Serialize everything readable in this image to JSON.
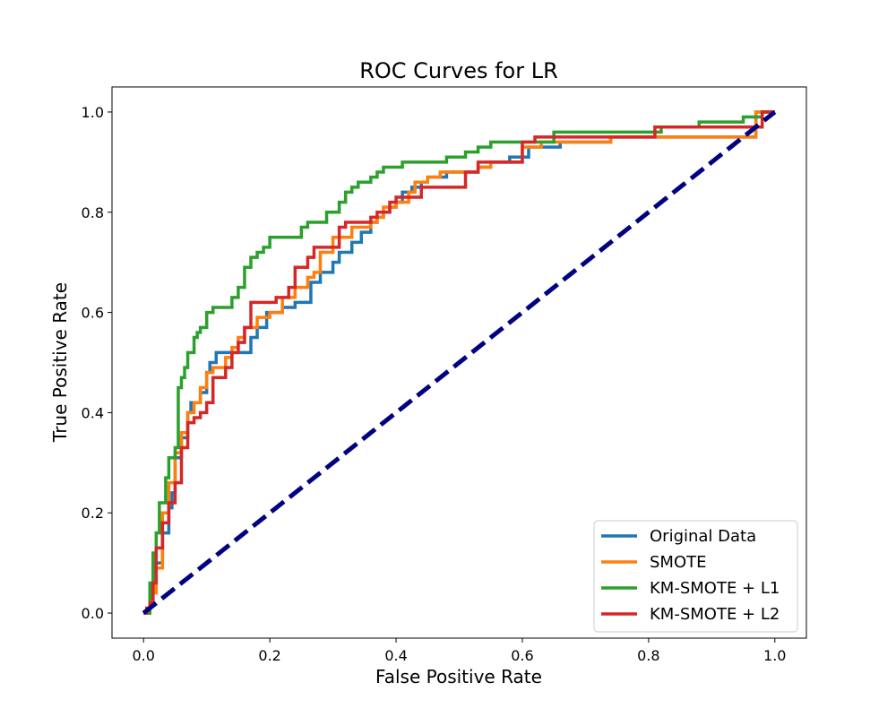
{
  "chart_data": {
    "type": "line",
    "title": "ROC Curves for LR",
    "xlabel": "False Positive Rate",
    "ylabel": "True Positive Rate",
    "xlim": [
      -0.05,
      1.05
    ],
    "ylim": [
      -0.05,
      1.05
    ],
    "xticks": [
      "0.0",
      "0.2",
      "0.4",
      "0.6",
      "0.8",
      "1.0"
    ],
    "yticks": [
      "0.0",
      "0.2",
      "0.4",
      "0.6",
      "0.8",
      "1.0"
    ],
    "grid": false,
    "legend_position": "lower-right",
    "series": [
      {
        "name": "Original Data",
        "color": "#1f77b4",
        "x": [
          0.0,
          0.01,
          0.01,
          0.015,
          0.015,
          0.02,
          0.02,
          0.03,
          0.03,
          0.04,
          0.04,
          0.045,
          0.045,
          0.05,
          0.05,
          0.06,
          0.06,
          0.07,
          0.07,
          0.075,
          0.075,
          0.09,
          0.09,
          0.1,
          0.1,
          0.105,
          0.105,
          0.115,
          0.115,
          0.13,
          0.13,
          0.17,
          0.17,
          0.18,
          0.18,
          0.195,
          0.195,
          0.22,
          0.22,
          0.24,
          0.24,
          0.265,
          0.265,
          0.28,
          0.28,
          0.3,
          0.3,
          0.31,
          0.31,
          0.33,
          0.33,
          0.345,
          0.345,
          0.36,
          0.36,
          0.37,
          0.37,
          0.38,
          0.38,
          0.39,
          0.39,
          0.4,
          0.4,
          0.41,
          0.41,
          0.425,
          0.425,
          0.44,
          0.44,
          0.45,
          0.45,
          0.48,
          0.48,
          0.53,
          0.53,
          0.55,
          0.55,
          0.58,
          0.58,
          0.61,
          0.61,
          0.66,
          0.66,
          0.74,
          0.74,
          0.97,
          0.97,
          1.0
        ],
        "y": [
          0.0,
          0.0,
          0.03,
          0.03,
          0.06,
          0.06,
          0.1,
          0.1,
          0.16,
          0.16,
          0.21,
          0.21,
          0.24,
          0.24,
          0.31,
          0.31,
          0.35,
          0.35,
          0.4,
          0.4,
          0.42,
          0.42,
          0.44,
          0.44,
          0.48,
          0.48,
          0.5,
          0.5,
          0.52,
          0.52,
          0.52,
          0.52,
          0.55,
          0.55,
          0.57,
          0.57,
          0.6,
          0.6,
          0.61,
          0.61,
          0.62,
          0.62,
          0.66,
          0.66,
          0.68,
          0.68,
          0.7,
          0.7,
          0.72,
          0.72,
          0.74,
          0.74,
          0.76,
          0.76,
          0.78,
          0.78,
          0.79,
          0.79,
          0.8,
          0.8,
          0.81,
          0.81,
          0.82,
          0.82,
          0.84,
          0.84,
          0.85,
          0.85,
          0.86,
          0.86,
          0.87,
          0.87,
          0.88,
          0.88,
          0.89,
          0.89,
          0.9,
          0.9,
          0.91,
          0.91,
          0.93,
          0.93,
          0.94,
          0.94,
          0.95,
          0.95,
          1.0,
          1.0
        ]
      },
      {
        "name": "SMOTE",
        "color": "#ff7f0e",
        "x": [
          0.0,
          0.01,
          0.01,
          0.02,
          0.02,
          0.03,
          0.03,
          0.04,
          0.04,
          0.05,
          0.05,
          0.06,
          0.06,
          0.07,
          0.07,
          0.08,
          0.08,
          0.09,
          0.09,
          0.1,
          0.1,
          0.11,
          0.11,
          0.13,
          0.13,
          0.14,
          0.14,
          0.15,
          0.15,
          0.16,
          0.16,
          0.18,
          0.18,
          0.2,
          0.2,
          0.22,
          0.22,
          0.24,
          0.24,
          0.26,
          0.26,
          0.27,
          0.27,
          0.28,
          0.28,
          0.3,
          0.3,
          0.33,
          0.33,
          0.36,
          0.36,
          0.37,
          0.37,
          0.38,
          0.38,
          0.4,
          0.4,
          0.42,
          0.42,
          0.43,
          0.43,
          0.45,
          0.45,
          0.47,
          0.47,
          0.53,
          0.53,
          0.55,
          0.55,
          0.6,
          0.6,
          0.63,
          0.63,
          0.74,
          0.74,
          0.97,
          0.97,
          1.0
        ],
        "y": [
          0.0,
          0.0,
          0.04,
          0.04,
          0.09,
          0.09,
          0.2,
          0.2,
          0.26,
          0.26,
          0.32,
          0.32,
          0.36,
          0.36,
          0.4,
          0.4,
          0.42,
          0.42,
          0.45,
          0.45,
          0.48,
          0.48,
          0.49,
          0.49,
          0.51,
          0.51,
          0.53,
          0.53,
          0.55,
          0.55,
          0.57,
          0.57,
          0.59,
          0.59,
          0.6,
          0.6,
          0.63,
          0.63,
          0.65,
          0.65,
          0.67,
          0.67,
          0.68,
          0.68,
          0.72,
          0.72,
          0.75,
          0.75,
          0.77,
          0.77,
          0.78,
          0.78,
          0.79,
          0.79,
          0.81,
          0.81,
          0.82,
          0.82,
          0.84,
          0.84,
          0.86,
          0.86,
          0.87,
          0.87,
          0.88,
          0.88,
          0.89,
          0.89,
          0.9,
          0.9,
          0.93,
          0.93,
          0.94,
          0.94,
          0.95,
          0.95,
          1.0,
          1.0
        ]
      },
      {
        "name": "KM-SMOTE + L1",
        "color": "#2ca02c",
        "x": [
          0.0,
          0.01,
          0.01,
          0.015,
          0.015,
          0.02,
          0.02,
          0.025,
          0.025,
          0.035,
          0.035,
          0.04,
          0.04,
          0.05,
          0.05,
          0.055,
          0.055,
          0.06,
          0.06,
          0.065,
          0.065,
          0.07,
          0.07,
          0.08,
          0.08,
          0.085,
          0.085,
          0.09,
          0.09,
          0.1,
          0.1,
          0.11,
          0.11,
          0.12,
          0.12,
          0.14,
          0.14,
          0.15,
          0.15,
          0.16,
          0.16,
          0.17,
          0.17,
          0.18,
          0.18,
          0.19,
          0.19,
          0.2,
          0.2,
          0.21,
          0.21,
          0.25,
          0.25,
          0.26,
          0.26,
          0.29,
          0.29,
          0.31,
          0.31,
          0.32,
          0.32,
          0.33,
          0.33,
          0.34,
          0.34,
          0.36,
          0.36,
          0.37,
          0.37,
          0.38,
          0.38,
          0.39,
          0.39,
          0.4,
          0.4,
          0.41,
          0.41,
          0.48,
          0.48,
          0.51,
          0.51,
          0.53,
          0.53,
          0.55,
          0.55,
          0.65,
          0.65,
          0.69,
          0.69,
          0.82,
          0.82,
          0.88,
          0.88,
          0.95,
          0.95,
          0.98,
          0.98,
          1.0
        ],
        "y": [
          0.0,
          0.0,
          0.06,
          0.06,
          0.12,
          0.12,
          0.16,
          0.16,
          0.22,
          0.22,
          0.27,
          0.27,
          0.31,
          0.31,
          0.33,
          0.33,
          0.45,
          0.45,
          0.47,
          0.47,
          0.49,
          0.49,
          0.52,
          0.52,
          0.55,
          0.55,
          0.56,
          0.56,
          0.57,
          0.57,
          0.6,
          0.6,
          0.61,
          0.61,
          0.61,
          0.61,
          0.63,
          0.63,
          0.65,
          0.65,
          0.69,
          0.69,
          0.71,
          0.71,
          0.72,
          0.72,
          0.73,
          0.73,
          0.75,
          0.75,
          0.75,
          0.75,
          0.77,
          0.77,
          0.78,
          0.78,
          0.8,
          0.8,
          0.82,
          0.82,
          0.84,
          0.84,
          0.85,
          0.85,
          0.86,
          0.86,
          0.87,
          0.87,
          0.88,
          0.88,
          0.89,
          0.89,
          0.89,
          0.89,
          0.89,
          0.89,
          0.9,
          0.9,
          0.91,
          0.91,
          0.92,
          0.92,
          0.93,
          0.93,
          0.94,
          0.94,
          0.96,
          0.96,
          0.96,
          0.96,
          0.97,
          0.97,
          0.98,
          0.98,
          0.99,
          0.99,
          1.0,
          1.0
        ]
      },
      {
        "name": "KM-SMOTE + L2",
        "color": "#d62728",
        "x": [
          0.0,
          0.005,
          0.005,
          0.01,
          0.01,
          0.015,
          0.015,
          0.02,
          0.02,
          0.03,
          0.03,
          0.04,
          0.04,
          0.05,
          0.05,
          0.06,
          0.06,
          0.07,
          0.07,
          0.08,
          0.08,
          0.09,
          0.09,
          0.1,
          0.1,
          0.11,
          0.11,
          0.13,
          0.13,
          0.14,
          0.14,
          0.15,
          0.15,
          0.16,
          0.16,
          0.17,
          0.17,
          0.21,
          0.21,
          0.23,
          0.23,
          0.24,
          0.24,
          0.26,
          0.26,
          0.27,
          0.27,
          0.31,
          0.31,
          0.32,
          0.32,
          0.36,
          0.36,
          0.37,
          0.37,
          0.39,
          0.39,
          0.4,
          0.4,
          0.41,
          0.41,
          0.44,
          0.44,
          0.45,
          0.45,
          0.51,
          0.51,
          0.53,
          0.53,
          0.6,
          0.6,
          0.62,
          0.62,
          0.65,
          0.65,
          0.81,
          0.81,
          0.98,
          0.98,
          1.0
        ],
        "y": [
          0.0,
          0.0,
          0.01,
          0.01,
          0.02,
          0.02,
          0.06,
          0.06,
          0.13,
          0.13,
          0.18,
          0.18,
          0.22,
          0.22,
          0.26,
          0.26,
          0.33,
          0.33,
          0.38,
          0.38,
          0.39,
          0.39,
          0.4,
          0.4,
          0.42,
          0.42,
          0.47,
          0.47,
          0.49,
          0.49,
          0.52,
          0.52,
          0.54,
          0.54,
          0.57,
          0.57,
          0.62,
          0.62,
          0.63,
          0.63,
          0.65,
          0.65,
          0.69,
          0.69,
          0.71,
          0.71,
          0.73,
          0.73,
          0.77,
          0.77,
          0.78,
          0.78,
          0.79,
          0.79,
          0.8,
          0.8,
          0.82,
          0.82,
          0.83,
          0.83,
          0.83,
          0.83,
          0.85,
          0.85,
          0.85,
          0.85,
          0.88,
          0.88,
          0.9,
          0.9,
          0.94,
          0.94,
          0.95,
          0.95,
          0.95,
          0.95,
          0.97,
          0.97,
          1.0,
          1.0
        ]
      },
      {
        "name": "",
        "color": "#000080",
        "dashed": true,
        "x": [
          0.0,
          1.0
        ],
        "y": [
          0.0,
          1.0
        ]
      }
    ]
  }
}
